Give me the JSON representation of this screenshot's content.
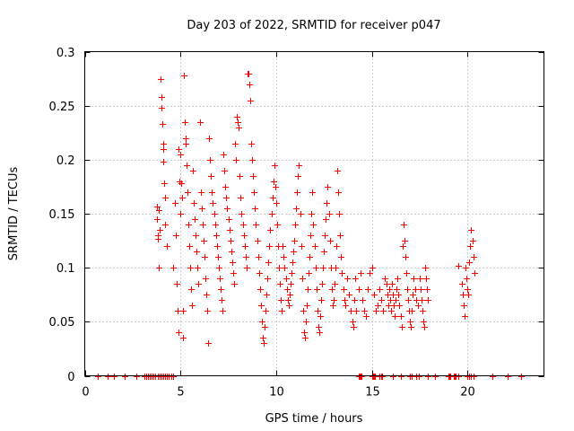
{
  "chart_data": {
    "type": "scatter",
    "title": "Day 203 of 2022, SRMTID for receiver p047",
    "xlabel": "GPS time / hours",
    "ylabel": "SRMTID / TECUs",
    "xlim": [
      0,
      24
    ],
    "ylim": [
      0,
      0.3
    ],
    "x_ticks": [
      0,
      5,
      10,
      15,
      20
    ],
    "x_tick_labels": [
      "0",
      "5",
      "10",
      "15",
      "20"
    ],
    "y_ticks": [
      0,
      0.05,
      0.1,
      0.15,
      0.2,
      0.25,
      0.3
    ],
    "y_tick_labels": [
      "0",
      "0.05",
      "0.1",
      "0.15",
      "0.2",
      "0.25",
      "0.3"
    ],
    "grid": true,
    "marker": "+",
    "marker_color": "#ff0000",
    "series": [
      {
        "name": "SRMTID",
        "points": [
          [
            3.75,
            0.157
          ],
          [
            3.78,
            0.145
          ],
          [
            3.8,
            0.13
          ],
          [
            3.82,
            0.127
          ],
          [
            3.85,
            0.1
          ],
          [
            3.88,
            0.153
          ],
          [
            3.9,
            0.135
          ],
          [
            3.97,
            0.275
          ],
          [
            4.0,
            0.258
          ],
          [
            4.02,
            0.248
          ],
          [
            4.05,
            0.233
          ],
          [
            4.08,
            0.215
          ],
          [
            4.1,
            0.21
          ],
          [
            4.12,
            0.198
          ],
          [
            4.15,
            0.178
          ],
          [
            4.18,
            0.165
          ],
          [
            4.2,
            0.14
          ],
          [
            4.3,
            0.12
          ],
          [
            4.6,
            0.1
          ],
          [
            4.7,
            0.16
          ],
          [
            4.75,
            0.13
          ],
          [
            4.8,
            0.085
          ],
          [
            4.85,
            0.06
          ],
          [
            4.9,
            0.04
          ],
          [
            4.92,
            0.21
          ],
          [
            4.95,
            0.18
          ],
          [
            4.98,
            0.15
          ],
          [
            5.0,
            0.205
          ],
          [
            5.05,
            0.178
          ],
          [
            5.1,
            0.165
          ],
          [
            5.12,
            0.035
          ],
          [
            5.15,
            0.06
          ],
          [
            5.2,
            0.278
          ],
          [
            5.22,
            0.235
          ],
          [
            5.25,
            0.22
          ],
          [
            5.28,
            0.215
          ],
          [
            5.3,
            0.195
          ],
          [
            5.35,
            0.17
          ],
          [
            5.4,
            0.14
          ],
          [
            5.45,
            0.12
          ],
          [
            5.5,
            0.1
          ],
          [
            5.55,
            0.08
          ],
          [
            5.6,
            0.065
          ],
          [
            5.65,
            0.19
          ],
          [
            5.7,
            0.16
          ],
          [
            5.75,
            0.145
          ],
          [
            5.8,
            0.13
          ],
          [
            5.85,
            0.115
          ],
          [
            5.9,
            0.1
          ],
          [
            5.95,
            0.085
          ],
          [
            6.0,
            0.235
          ],
          [
            6.05,
            0.17
          ],
          [
            6.1,
            0.155
          ],
          [
            6.15,
            0.14
          ],
          [
            6.2,
            0.125
          ],
          [
            6.25,
            0.11
          ],
          [
            6.3,
            0.09
          ],
          [
            6.35,
            0.075
          ],
          [
            6.4,
            0.06
          ],
          [
            6.45,
            0.03
          ],
          [
            6.5,
            0.22
          ],
          [
            6.55,
            0.2
          ],
          [
            6.6,
            0.185
          ],
          [
            6.65,
            0.17
          ],
          [
            6.7,
            0.16
          ],
          [
            6.75,
            0.15
          ],
          [
            6.8,
            0.14
          ],
          [
            6.85,
            0.13
          ],
          [
            6.9,
            0.12
          ],
          [
            6.95,
            0.11
          ],
          [
            7.0,
            0.1
          ],
          [
            7.05,
            0.09
          ],
          [
            7.1,
            0.08
          ],
          [
            7.15,
            0.07
          ],
          [
            7.2,
            0.06
          ],
          [
            7.25,
            0.205
          ],
          [
            7.3,
            0.19
          ],
          [
            7.35,
            0.175
          ],
          [
            7.4,
            0.165
          ],
          [
            7.45,
            0.155
          ],
          [
            7.5,
            0.145
          ],
          [
            7.55,
            0.135
          ],
          [
            7.6,
            0.125
          ],
          [
            7.65,
            0.115
          ],
          [
            7.7,
            0.105
          ],
          [
            7.75,
            0.095
          ],
          [
            7.8,
            0.085
          ],
          [
            7.85,
            0.215
          ],
          [
            7.9,
            0.2
          ],
          [
            7.95,
            0.24
          ],
          [
            8.0,
            0.235
          ],
          [
            8.05,
            0.23
          ],
          [
            8.1,
            0.185
          ],
          [
            8.15,
            0.165
          ],
          [
            8.2,
            0.15
          ],
          [
            8.25,
            0.14
          ],
          [
            8.3,
            0.13
          ],
          [
            8.35,
            0.12
          ],
          [
            8.4,
            0.11
          ],
          [
            8.45,
            0.1
          ],
          [
            8.5,
            0.28
          ],
          [
            8.55,
            0.28
          ],
          [
            8.6,
            0.27
          ],
          [
            8.65,
            0.255
          ],
          [
            8.7,
            0.215
          ],
          [
            8.75,
            0.2
          ],
          [
            8.8,
            0.185
          ],
          [
            8.85,
            0.17
          ],
          [
            8.9,
            0.155
          ],
          [
            8.95,
            0.14
          ],
          [
            9.0,
            0.125
          ],
          [
            9.05,
            0.11
          ],
          [
            9.1,
            0.095
          ],
          [
            9.15,
            0.08
          ],
          [
            9.2,
            0.065
          ],
          [
            9.25,
            0.05
          ],
          [
            9.3,
            0.035
          ],
          [
            9.35,
            0.03
          ],
          [
            9.4,
            0.045
          ],
          [
            9.45,
            0.06
          ],
          [
            9.5,
            0.075
          ],
          [
            9.55,
            0.09
          ],
          [
            9.6,
            0.105
          ],
          [
            9.65,
            0.12
          ],
          [
            9.7,
            0.135
          ],
          [
            9.75,
            0.15
          ],
          [
            9.8,
            0.165
          ],
          [
            9.85,
            0.18
          ],
          [
            9.9,
            0.195
          ],
          [
            9.95,
            0.175
          ],
          [
            10.0,
            0.16
          ],
          [
            10.05,
            0.14
          ],
          [
            10.1,
            0.12
          ],
          [
            10.15,
            0.1
          ],
          [
            10.2,
            0.085
          ],
          [
            10.25,
            0.07
          ],
          [
            10.3,
            0.06
          ],
          [
            10.35,
            0.12
          ],
          [
            10.4,
            0.11
          ],
          [
            10.45,
            0.1
          ],
          [
            10.5,
            0.09
          ],
          [
            10.55,
            0.08
          ],
          [
            10.6,
            0.07
          ],
          [
            10.65,
            0.065
          ],
          [
            10.7,
            0.075
          ],
          [
            10.75,
            0.085
          ],
          [
            10.8,
            0.095
          ],
          [
            10.85,
            0.105
          ],
          [
            10.9,
            0.115
          ],
          [
            10.95,
            0.125
          ],
          [
            11.0,
            0.14
          ],
          [
            11.05,
            0.155
          ],
          [
            11.1,
            0.17
          ],
          [
            11.15,
            0.185
          ],
          [
            11.2,
            0.195
          ],
          [
            11.25,
            0.15
          ],
          [
            11.3,
            0.12
          ],
          [
            11.35,
            0.09
          ],
          [
            11.4,
            0.06
          ],
          [
            11.45,
            0.04
          ],
          [
            11.5,
            0.035
          ],
          [
            11.55,
            0.05
          ],
          [
            11.6,
            0.065
          ],
          [
            11.65,
            0.08
          ],
          [
            11.7,
            0.095
          ],
          [
            11.75,
            0.11
          ],
          [
            11.8,
            0.13
          ],
          [
            11.85,
            0.15
          ],
          [
            11.9,
            0.17
          ],
          [
            11.95,
            0.14
          ],
          [
            12.0,
            0.12
          ],
          [
            12.05,
            0.1
          ],
          [
            12.1,
            0.08
          ],
          [
            12.15,
            0.06
          ],
          [
            12.2,
            0.045
          ],
          [
            12.25,
            0.04
          ],
          [
            12.3,
            0.055
          ],
          [
            12.35,
            0.07
          ],
          [
            12.4,
            0.085
          ],
          [
            12.45,
            0.1
          ],
          [
            12.5,
            0.115
          ],
          [
            12.55,
            0.13
          ],
          [
            12.6,
            0.145
          ],
          [
            12.65,
            0.16
          ],
          [
            12.7,
            0.175
          ],
          [
            12.75,
            0.15
          ],
          [
            12.8,
            0.125
          ],
          [
            12.85,
            0.1
          ],
          [
            12.9,
            0.08
          ],
          [
            12.95,
            0.065
          ],
          [
            13.0,
            0.07
          ],
          [
            13.05,
            0.085
          ],
          [
            13.1,
            0.1
          ],
          [
            13.15,
            0.12
          ],
          [
            13.2,
            0.19
          ],
          [
            13.25,
            0.17
          ],
          [
            13.3,
            0.15
          ],
          [
            13.35,
            0.13
          ],
          [
            13.4,
            0.11
          ],
          [
            13.45,
            0.095
          ],
          [
            13.5,
            0.08
          ],
          [
            13.55,
            0.07
          ],
          [
            13.6,
            0.065
          ],
          [
            13.7,
            0.09
          ],
          [
            13.8,
            0.075
          ],
          [
            13.9,
            0.06
          ],
          [
            14.0,
            0.05
          ],
          [
            14.05,
            0.045
          ],
          [
            14.1,
            0.07
          ],
          [
            14.15,
            0.09
          ],
          [
            14.2,
            0.06
          ],
          [
            14.3,
            0.08
          ],
          [
            14.4,
            0.095
          ],
          [
            14.5,
            0.07
          ],
          [
            14.6,
            0.06
          ],
          [
            14.7,
            0.055
          ],
          [
            14.8,
            0.08
          ],
          [
            14.9,
            0.095
          ],
          [
            15.0,
            0.1
          ],
          [
            15.1,
            0.075
          ],
          [
            15.2,
            0.06
          ],
          [
            15.3,
            0.065
          ],
          [
            15.4,
            0.08
          ],
          [
            15.5,
            0.07
          ],
          [
            15.6,
            0.06
          ],
          [
            15.7,
            0.09
          ],
          [
            15.75,
            0.085
          ],
          [
            15.8,
            0.075
          ],
          [
            15.85,
            0.065
          ],
          [
            15.9,
            0.08
          ],
          [
            15.95,
            0.07
          ],
          [
            16.0,
            0.06
          ],
          [
            16.05,
            0.085
          ],
          [
            16.1,
            0.075
          ],
          [
            16.15,
            0.065
          ],
          [
            16.2,
            0.055
          ],
          [
            16.25,
            0.07
          ],
          [
            16.3,
            0.08
          ],
          [
            16.35,
            0.09
          ],
          [
            16.4,
            0.075
          ],
          [
            16.45,
            0.065
          ],
          [
            16.5,
            0.055
          ],
          [
            16.55,
            0.045
          ],
          [
            16.6,
            0.12
          ],
          [
            16.65,
            0.14
          ],
          [
            16.7,
            0.125
          ],
          [
            16.75,
            0.11
          ],
          [
            16.8,
            0.095
          ],
          [
            16.85,
            0.08
          ],
          [
            16.9,
            0.07
          ],
          [
            16.95,
            0.06
          ],
          [
            17.0,
            0.05
          ],
          [
            17.05,
            0.045
          ],
          [
            17.1,
            0.06
          ],
          [
            17.15,
            0.075
          ],
          [
            17.2,
            0.09
          ],
          [
            17.25,
            0.08
          ],
          [
            17.3,
            0.07
          ],
          [
            17.4,
            0.065
          ],
          [
            17.5,
            0.09
          ],
          [
            17.55,
            0.08
          ],
          [
            17.6,
            0.07
          ],
          [
            17.65,
            0.06
          ],
          [
            17.7,
            0.05
          ],
          [
            17.75,
            0.045
          ],
          [
            17.8,
            0.1
          ],
          [
            17.85,
            0.09
          ],
          [
            17.9,
            0.08
          ],
          [
            17.95,
            0.07
          ],
          [
            19.5,
            0.102
          ],
          [
            19.7,
            0.085
          ],
          [
            19.75,
            0.075
          ],
          [
            19.8,
            0.065
          ],
          [
            19.85,
            0.055
          ],
          [
            19.9,
            0.1
          ],
          [
            19.95,
            0.09
          ],
          [
            20.0,
            0.08
          ],
          [
            20.05,
            0.075
          ],
          [
            20.1,
            0.105
          ],
          [
            20.15,
            0.12
          ],
          [
            20.2,
            0.135
          ],
          [
            20.25,
            0.125
          ],
          [
            20.3,
            0.11
          ],
          [
            20.35,
            0.095
          ]
        ]
      }
    ],
    "zero_points_x": [
      0.7,
      1.2,
      1.5,
      2.1,
      2.7,
      3.1,
      3.2,
      3.3,
      3.4,
      3.5,
      3.6,
      3.7,
      3.8,
      3.9,
      4.0,
      4.1,
      4.2,
      4.3,
      4.4,
      4.5,
      4.6,
      14.3,
      14.35,
      14.4,
      14.45,
      15.0,
      15.05,
      15.1,
      15.15,
      15.4,
      15.5,
      15.55,
      16.1,
      16.5,
      17.0,
      17.1,
      17.3,
      17.45,
      17.95,
      18.3,
      19.0,
      19.05,
      19.1,
      19.3,
      19.35,
      19.4,
      19.5,
      20.0,
      20.1,
      20.2,
      20.3,
      21.3,
      22.1,
      22.8
    ]
  }
}
